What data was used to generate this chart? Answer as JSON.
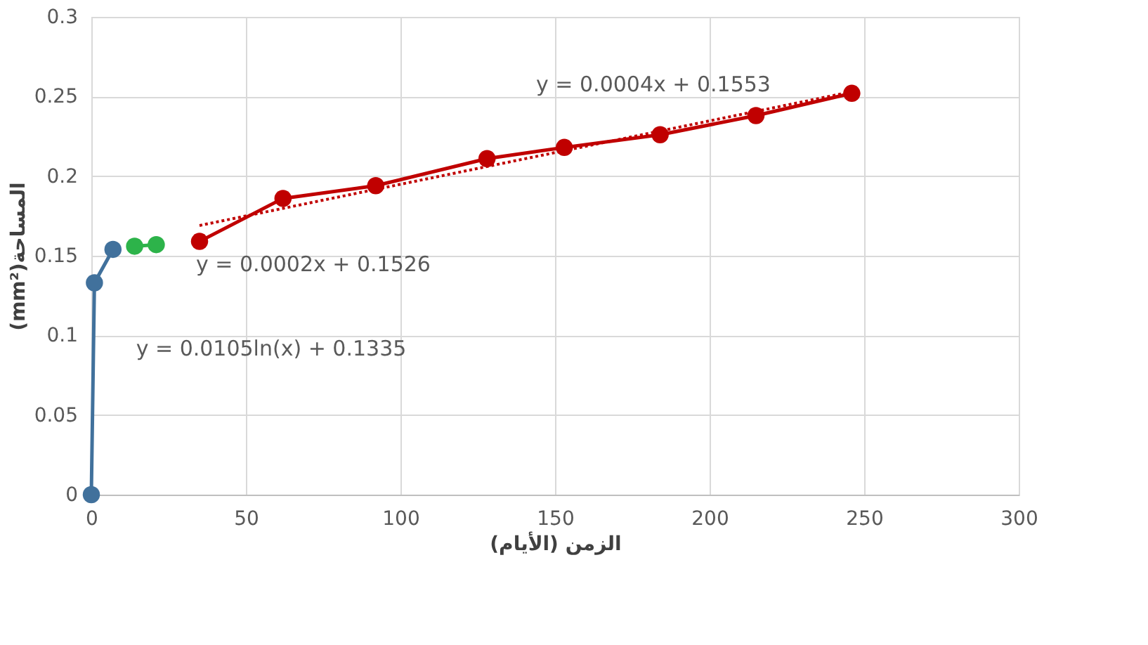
{
  "chart_data": {
    "type": "line",
    "xlabel": "الزمن (الأيام)",
    "ylabel": "(mm²)المساحة",
    "xlim": [
      0,
      300
    ],
    "xticks": [
      0,
      50,
      100,
      150,
      200,
      250,
      300
    ],
    "ylim": [
      0,
      0.3
    ],
    "yticks": [
      0,
      0.05,
      0.1,
      0.15,
      0.2,
      0.25,
      0.3
    ],
    "grid": true,
    "marker": "circle",
    "line_style": "solid",
    "series": [
      {
        "color": "#41719c",
        "x": [
          0,
          1,
          7
        ],
        "values": [
          0,
          0.133,
          0.154
        ]
      },
      {
        "color": "#2db34a",
        "x": [
          14,
          21
        ],
        "values": [
          0.156,
          0.157
        ]
      },
      {
        "color": "#c00000",
        "x": [
          35,
          62,
          92,
          128,
          153,
          184,
          215,
          246
        ],
        "values": [
          0.159,
          0.186,
          0.194,
          0.211,
          0.218,
          0.226,
          0.238,
          0.252
        ]
      },
      {
        "type": "line",
        "color": "#c00000",
        "line_style": "dotted",
        "marker": "none",
        "x": [
          35,
          246
        ],
        "values": [
          0.169,
          0.253
        ]
      }
    ],
    "annotations": [
      "y = 0.0004x + 0.1553",
      "y = 0.0002x + 0.1526",
      "y = 0.0105ln(x) + 0.1335"
    ]
  }
}
